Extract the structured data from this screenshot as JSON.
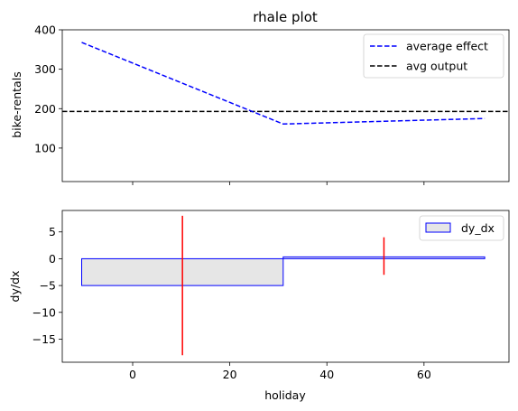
{
  "chart_data": [
    {
      "type": "line",
      "title": "rhale plot",
      "xlabel": "",
      "ylabel": "bike-rentals",
      "xlim": [
        -14.5,
        77.5
      ],
      "ylim": [
        15,
        400
      ],
      "yticks": [
        100,
        200,
        300,
        400
      ],
      "xticks": [
        0,
        20,
        40,
        60
      ],
      "show_xtick_labels": false,
      "grid": false,
      "legend_position": "top-right",
      "series": [
        {
          "name": "average effect",
          "style": "dashed",
          "color": "#0000ff",
          "x": [
            -10.5,
            31.0,
            72.5
          ],
          "y": [
            368,
            161,
            175
          ]
        },
        {
          "name": "avg output",
          "style": "dashed",
          "color": "#000000",
          "hline": 193
        }
      ]
    },
    {
      "type": "bar",
      "title": "",
      "xlabel": "holiday",
      "ylabel": "dy/dx",
      "xlim": [
        -14.5,
        77.5
      ],
      "ylim": [
        -19.3,
        9.0
      ],
      "yticks": [
        -15,
        -10,
        -5,
        0,
        5
      ],
      "xticks": [
        0,
        20,
        40,
        60
      ],
      "grid": false,
      "legend_position": "top-right",
      "series": [
        {
          "name": "dy_dx",
          "fill": "#e6e6e6",
          "edge": "#0000ff",
          "bins": [
            {
              "x0": -10.5,
              "x1": 31.0,
              "value": -5.0
            },
            {
              "x0": 31.0,
              "x1": 72.5,
              "value": 0.34
            }
          ]
        }
      ],
      "error_bars": {
        "color": "#ff0000",
        "items": [
          {
            "x": 10.25,
            "low": -18.0,
            "high": 8.0
          },
          {
            "x": 51.75,
            "low": -3.0,
            "high": 4.0
          }
        ]
      }
    }
  ]
}
